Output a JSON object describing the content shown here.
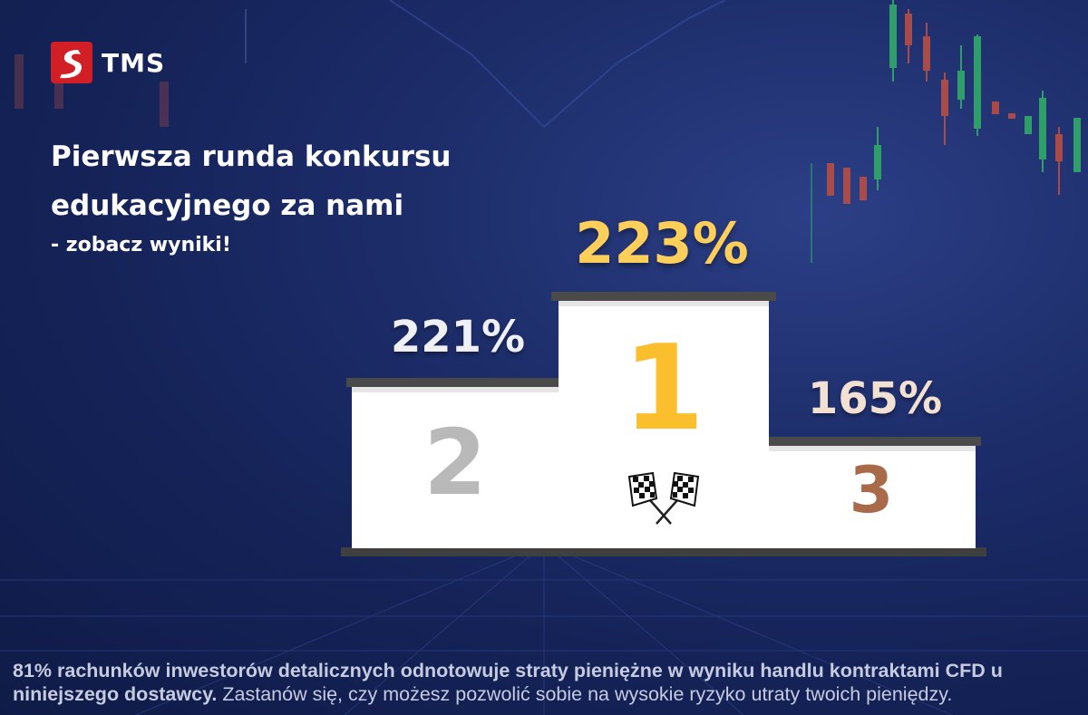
{
  "brand": {
    "name": "TMS"
  },
  "headline": "Pierwsza runda konkursu edukacyjnego za nami",
  "subline": "- zobacz wyniki!",
  "podium": {
    "first": {
      "place": "1",
      "percent": "223%"
    },
    "second": {
      "place": "2",
      "percent": "221%"
    },
    "third": {
      "place": "3",
      "percent": "165%"
    }
  },
  "disclaimer": {
    "bold": "81% rachunków inwestorów detalicznych odnotowuje straty pieniężne w wyniku handlu kontraktami CFD u niniejszego dostawcy.",
    "regular": " Zastanów się, czy możesz  pozwolić sobie na wysokie ryzyko utraty twoich pieniędzy."
  },
  "colors": {
    "background": "#1a2a66",
    "brand_red": "#d21f26",
    "gold": "#fbbf2e",
    "silver": "#b9b9b9",
    "bronze": "#a86a48",
    "candle_green": "#2f9e6a",
    "candle_red": "#a84b4b"
  },
  "icons": [
    "tms-logo-icon",
    "checkered-flags-icon"
  ]
}
